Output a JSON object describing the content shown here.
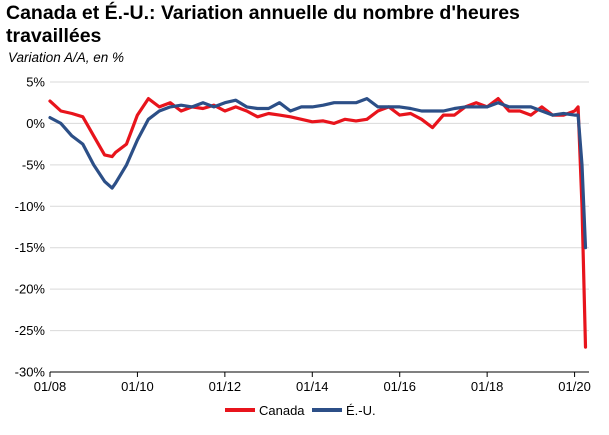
{
  "title": "Canada et É.-U.: Variation annuelle du nombre d'heures travaillées",
  "subtitle": "Variation A/A, en %",
  "colors": {
    "canada": "#e8141c",
    "us": "#2c4f87",
    "grid": "#d9d9d9"
  },
  "chart_data": {
    "type": "line",
    "title": "Canada et É.-U.: Variation annuelle du nombre d'heures travaillées",
    "ylabel": "Variation A/A, en %",
    "xlim": [
      2008.0,
      2020.33
    ],
    "ylim": [
      -30,
      5
    ],
    "y_ticks": [
      5,
      0,
      -5,
      -10,
      -15,
      -20,
      -25,
      -30
    ],
    "y_tick_labels": [
      "5%",
      "0%",
      "-5%",
      "-10%",
      "-15%",
      "-20%",
      "-25%",
      "-30%"
    ],
    "x_ticks": [
      2008,
      2010,
      2012,
      2014,
      2016,
      2018,
      2020
    ],
    "x_tick_labels": [
      "01/08",
      "01/10",
      "01/12",
      "01/14",
      "01/16",
      "01/18",
      "01/20"
    ],
    "grid": "horizontal",
    "legend_position": "bottom",
    "series": [
      {
        "name": "Canada",
        "color": "#e8141c",
        "x": [
          2008.0,
          2008.25,
          2008.5,
          2008.75,
          2009.0,
          2009.25,
          2009.42,
          2009.5,
          2009.75,
          2010.0,
          2010.25,
          2010.5,
          2010.75,
          2011.0,
          2011.25,
          2011.5,
          2011.75,
          2012.0,
          2012.25,
          2012.5,
          2012.75,
          2013.0,
          2013.25,
          2013.5,
          2013.75,
          2014.0,
          2014.25,
          2014.5,
          2014.75,
          2015.0,
          2015.25,
          2015.5,
          2015.75,
          2016.0,
          2016.25,
          2016.5,
          2016.75,
          2017.0,
          2017.25,
          2017.5,
          2017.75,
          2018.0,
          2018.25,
          2018.5,
          2018.75,
          2019.0,
          2019.25,
          2019.5,
          2019.75,
          2020.0,
          2020.08,
          2020.17,
          2020.25
        ],
        "values": [
          2.7,
          1.5,
          1.2,
          0.8,
          -1.5,
          -3.8,
          -4.0,
          -3.5,
          -2.5,
          1.0,
          3.0,
          2.0,
          2.5,
          1.5,
          2.0,
          1.8,
          2.2,
          1.5,
          2.0,
          1.5,
          0.8,
          1.2,
          1.0,
          0.8,
          0.5,
          0.2,
          0.3,
          0.0,
          0.5,
          0.3,
          0.5,
          1.5,
          2.0,
          1.0,
          1.2,
          0.5,
          -0.5,
          1.0,
          1.0,
          2.0,
          2.5,
          2.0,
          3.0,
          1.5,
          1.5,
          1.0,
          2.0,
          1.0,
          1.0,
          1.5,
          2.0,
          -10.0,
          -27.0
        ]
      },
      {
        "name": "É.-U.",
        "color": "#2c4f87",
        "x": [
          2008.0,
          2008.25,
          2008.5,
          2008.75,
          2009.0,
          2009.25,
          2009.42,
          2009.5,
          2009.75,
          2010.0,
          2010.25,
          2010.5,
          2010.75,
          2011.0,
          2011.25,
          2011.5,
          2011.75,
          2012.0,
          2012.25,
          2012.5,
          2012.75,
          2013.0,
          2013.25,
          2013.5,
          2013.75,
          2014.0,
          2014.25,
          2014.5,
          2014.75,
          2015.0,
          2015.25,
          2015.5,
          2015.75,
          2016.0,
          2016.25,
          2016.5,
          2016.75,
          2017.0,
          2017.25,
          2017.5,
          2017.75,
          2018.0,
          2018.25,
          2018.5,
          2018.75,
          2019.0,
          2019.25,
          2019.5,
          2019.75,
          2020.0,
          2020.08,
          2020.17,
          2020.25
        ],
        "values": [
          0.7,
          0.0,
          -1.5,
          -2.5,
          -5.0,
          -7.0,
          -7.8,
          -7.2,
          -5.0,
          -2.0,
          0.5,
          1.5,
          2.0,
          2.2,
          2.0,
          2.5,
          2.0,
          2.5,
          2.8,
          2.0,
          1.8,
          1.8,
          2.5,
          1.5,
          2.0,
          2.0,
          2.2,
          2.5,
          2.5,
          2.5,
          3.0,
          2.0,
          2.0,
          2.0,
          1.8,
          1.5,
          1.5,
          1.5,
          1.8,
          2.0,
          2.0,
          2.0,
          2.5,
          2.0,
          2.0,
          2.0,
          1.5,
          1.0,
          1.2,
          1.0,
          1.0,
          -5.0,
          -15.0
        ]
      }
    ]
  }
}
